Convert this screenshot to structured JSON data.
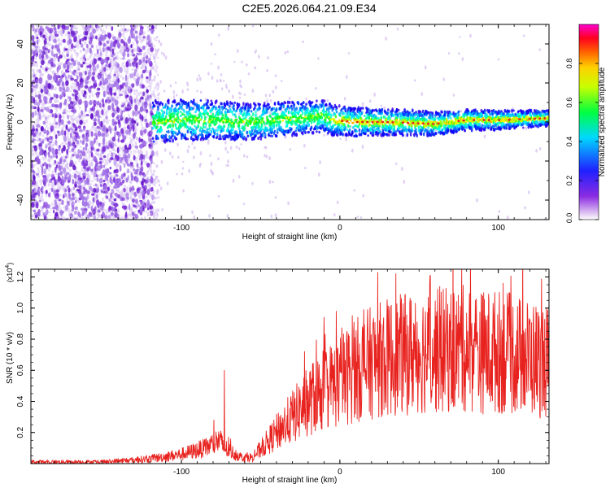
{
  "figure": {
    "title": "C2E5.2026.064.21.09.E34"
  },
  "colors": {
    "signal_line": "#e8221e",
    "spectrogram_scatter": "#7a2bd8",
    "ridge_peak": "#e8251e"
  },
  "chart_data": [
    {
      "type": "heatmap",
      "name": "spectrogram",
      "xlabel": "Height of straight line (km)",
      "ylabel": "Frequency (Hz)",
      "xlim": [
        -195,
        132
      ],
      "ylim": [
        -50,
        50
      ],
      "x_ticks": [
        -100,
        0,
        100
      ],
      "y_ticks": [
        -40,
        -20,
        0,
        20,
        40
      ],
      "colorbar": {
        "label": "Normalized spectral amplitude",
        "range": [
          0,
          1
        ],
        "ticks": [
          0.0,
          0.2,
          0.4,
          0.6,
          0.8
        ],
        "tick_labels": [
          "0.0",
          "0.2",
          "0.4",
          "0.6",
          "0.8"
        ],
        "colormap": [
          "#ffffff",
          "#6a0dd8",
          "#0000ff",
          "#00ffff",
          "#00ff00",
          "#ffff00",
          "#ff8000",
          "#ff0000",
          "#ff00ff"
        ]
      },
      "features": {
        "noise_region_x": [
          -195,
          -118
        ],
        "ridge_center_freq_hz": 1,
        "ridge_start_x": -118,
        "ridge_points": [
          [
            -115,
            0
          ],
          [
            -100,
            1
          ],
          [
            -80,
            1
          ],
          [
            -60,
            0
          ],
          [
            -40,
            1
          ],
          [
            -25,
            2
          ],
          [
            -10,
            3
          ],
          [
            -5,
            1
          ],
          [
            10,
            0
          ],
          [
            30,
            0
          ],
          [
            60,
            -1
          ],
          [
            80,
            1
          ],
          [
            100,
            1
          ],
          [
            132,
            2
          ]
        ]
      }
    },
    {
      "type": "line",
      "name": "snr",
      "xlabel": "Height of straight line (km)",
      "ylabel": "SNR (10 * v/v)",
      "y_multiplier": "(x10^4)",
      "y_multiplier_base": "(x10",
      "y_multiplier_exp": "4",
      "y_multiplier_close": ")",
      "xlim": [
        -195,
        132
      ],
      "ylim": [
        0,
        1.25
      ],
      "x_ticks": [
        -100,
        0,
        100
      ],
      "y_ticks": [
        0.2,
        0.4,
        0.6,
        0.8,
        1.0,
        1.2
      ],
      "envelope": {
        "x": [
          -195,
          -150,
          -120,
          -100,
          -85,
          -76,
          -73,
          -62,
          -55,
          -40,
          -30,
          -20,
          -10,
          0,
          10,
          20,
          30,
          40,
          50,
          60,
          70,
          80,
          90,
          100,
          110,
          120,
          132
        ],
        "y": [
          0.01,
          0.01,
          0.03,
          0.06,
          0.1,
          0.15,
          0.1,
          0.04,
          0.04,
          0.2,
          0.3,
          0.4,
          0.48,
          0.53,
          0.6,
          0.65,
          0.68,
          0.7,
          0.72,
          0.72,
          0.73,
          0.74,
          0.72,
          0.72,
          0.7,
          0.68,
          0.65
        ]
      },
      "notable_peaks": [
        {
          "x": -73,
          "y": 0.6
        },
        {
          "x": 15,
          "y": 0.99
        },
        {
          "x": 57,
          "y": 1.21
        },
        {
          "x": 77,
          "y": 1.25
        },
        {
          "x": 103,
          "y": 1.16
        }
      ]
    }
  ]
}
